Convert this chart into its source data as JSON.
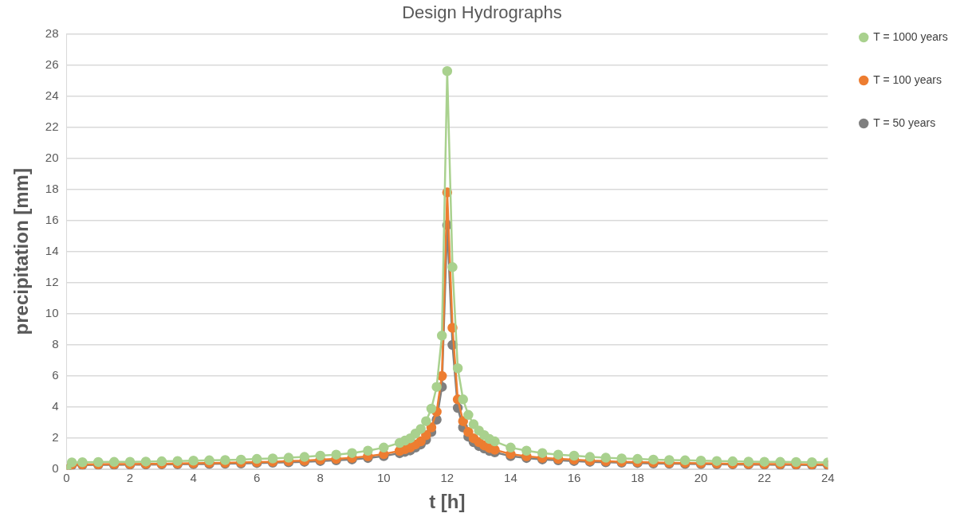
{
  "chart_data": {
    "type": "line",
    "title": "Design Hydrographs",
    "xlabel": "t [h]",
    "ylabel": "precipitation [mm]",
    "x": [
      0,
      0.167,
      0.5,
      1,
      1.5,
      2,
      2.5,
      3,
      3.5,
      4,
      4.5,
      5,
      5.5,
      6,
      6.5,
      7,
      7.5,
      8,
      8.5,
      9,
      9.5,
      10,
      10.5,
      10.667,
      10.833,
      11,
      11.167,
      11.333,
      11.5,
      11.667,
      11.833,
      12,
      12.167,
      12.333,
      12.5,
      12.667,
      12.833,
      13,
      13.167,
      13.333,
      13.5,
      14,
      14.5,
      15,
      15.5,
      16,
      16.5,
      17,
      17.5,
      18,
      18.5,
      19,
      19.5,
      20,
      20.5,
      21,
      21.5,
      22,
      22.5,
      23,
      23.5,
      24
    ],
    "series": [
      {
        "name": "T = 1000 years",
        "color": "#a9d18e",
        "values": [
          0,
          0.45,
          0.46,
          0.47,
          0.48,
          0.49,
          0.5,
          0.52,
          0.54,
          0.56,
          0.58,
          0.6,
          0.63,
          0.67,
          0.7,
          0.75,
          0.8,
          0.88,
          0.95,
          1.05,
          1.2,
          1.4,
          1.7,
          1.85,
          2.0,
          2.3,
          2.6,
          3.1,
          3.9,
          5.3,
          8.6,
          25.6,
          13.0,
          6.5,
          4.5,
          3.5,
          2.9,
          2.5,
          2.2,
          1.95,
          1.8,
          1.4,
          1.2,
          1.05,
          0.95,
          0.88,
          0.8,
          0.75,
          0.7,
          0.67,
          0.63,
          0.6,
          0.58,
          0.56,
          0.54,
          0.52,
          0.5,
          0.49,
          0.48,
          0.47,
          0.46,
          0.45
        ]
      },
      {
        "name": "T = 100 years",
        "color": "#ed7d31",
        "values": [
          0,
          0.32,
          0.32,
          0.33,
          0.34,
          0.34,
          0.35,
          0.36,
          0.38,
          0.39,
          0.41,
          0.42,
          0.44,
          0.47,
          0.49,
          0.53,
          0.56,
          0.62,
          0.67,
          0.74,
          0.84,
          0.98,
          1.19,
          1.3,
          1.4,
          1.6,
          1.8,
          2.2,
          2.7,
          3.7,
          6.0,
          17.8,
          9.1,
          4.5,
          3.1,
          2.4,
          2.0,
          1.75,
          1.54,
          1.37,
          1.26,
          0.98,
          0.84,
          0.74,
          0.67,
          0.62,
          0.56,
          0.53,
          0.49,
          0.47,
          0.44,
          0.42,
          0.41,
          0.39,
          0.38,
          0.36,
          0.35,
          0.34,
          0.34,
          0.33,
          0.32,
          0.32
        ]
      },
      {
        "name": "T = 50 years",
        "color": "#7f7f7f",
        "values": [
          0,
          0.27,
          0.28,
          0.29,
          0.29,
          0.3,
          0.31,
          0.32,
          0.33,
          0.34,
          0.35,
          0.37,
          0.38,
          0.41,
          0.43,
          0.46,
          0.49,
          0.54,
          0.58,
          0.64,
          0.73,
          0.85,
          1.04,
          1.13,
          1.22,
          1.4,
          1.6,
          1.9,
          2.4,
          3.2,
          5.3,
          15.7,
          8.0,
          3.95,
          2.7,
          2.1,
          1.75,
          1.5,
          1.34,
          1.19,
          1.1,
          0.85,
          0.73,
          0.64,
          0.58,
          0.54,
          0.49,
          0.46,
          0.43,
          0.41,
          0.38,
          0.37,
          0.35,
          0.34,
          0.33,
          0.32,
          0.31,
          0.3,
          0.29,
          0.29,
          0.28,
          0.27
        ]
      }
    ],
    "xlim": [
      0,
      24
    ],
    "xticks": [
      0,
      2,
      4,
      6,
      8,
      10,
      12,
      14,
      16,
      18,
      20,
      22,
      24
    ],
    "ylim": [
      0,
      28
    ],
    "yticks": [
      0,
      2,
      4,
      6,
      8,
      10,
      12,
      14,
      16,
      18,
      20,
      22,
      24,
      26,
      28
    ],
    "grid": "y",
    "legend": "top right",
    "marker": "circle",
    "line_style": "solid"
  }
}
